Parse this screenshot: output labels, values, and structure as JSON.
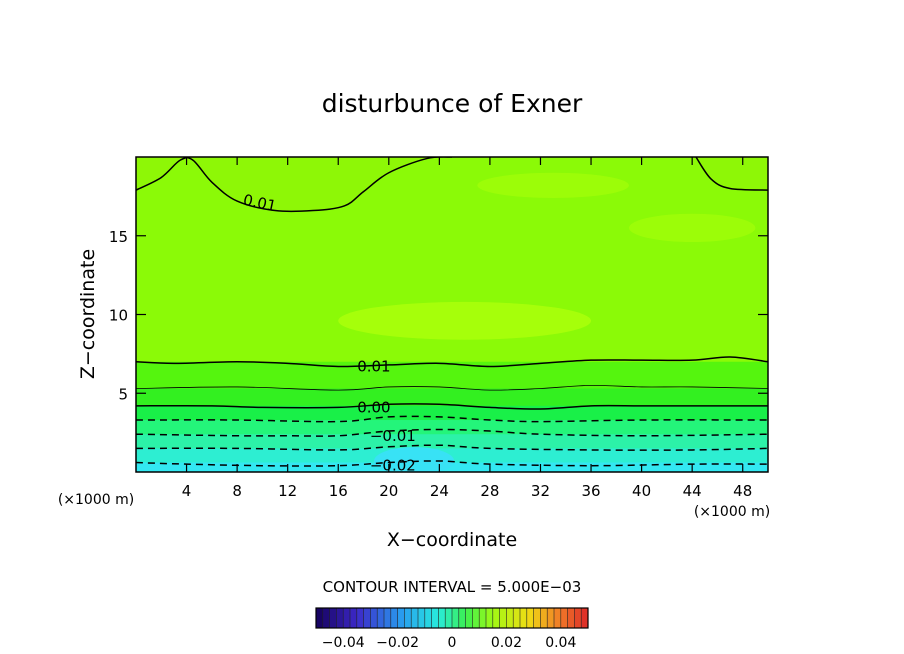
{
  "chart_data": {
    "type": "contour",
    "title": "disturbunce of Exner",
    "xlabel": "X−coordinate",
    "ylabel": "Z−coordinate",
    "x_unit_left": "(×1000 m)",
    "x_unit_right": "(×1000 m)",
    "xlim": [
      0,
      50
    ],
    "ylim": [
      0,
      20
    ],
    "x_ticks": [
      4,
      8,
      12,
      16,
      20,
      24,
      28,
      32,
      36,
      40,
      44,
      48
    ],
    "y_ticks": [
      5,
      10,
      15
    ],
    "contour_interval_text": "CONTOUR INTERVAL = 5.000E−03",
    "contour_labels": [
      {
        "text": "0.01",
        "x": 8.5,
        "z": 17.3
      },
      {
        "text": "0.01",
        "x": 17.5,
        "z": 6.7
      },
      {
        "text": "0.00",
        "x": 17.5,
        "z": 4.1
      },
      {
        "text": "−0.01",
        "x": 18.5,
        "z": 2.3
      },
      {
        "text": "−0.02",
        "x": 18.5,
        "z": 0.4
      }
    ],
    "contour_lines": [
      {
        "level": 0.01,
        "dashed": false,
        "points": [
          [
            0,
            17.9
          ],
          [
            2,
            18.7
          ],
          [
            3.5,
            19.8
          ],
          [
            4.5,
            19.8
          ],
          [
            6,
            18.4
          ],
          [
            8,
            17.2
          ],
          [
            11,
            16.6
          ],
          [
            14,
            16.6
          ],
          [
            16.5,
            16.9
          ],
          [
            18,
            17.8
          ],
          [
            20,
            19.0
          ],
          [
            23,
            19.9
          ],
          [
            25,
            20.0
          ]
        ]
      },
      {
        "level": 0.01,
        "dashed": false,
        "points": [
          [
            44.3,
            20.0
          ],
          [
            45.5,
            18.6
          ],
          [
            47,
            18.0
          ],
          [
            50,
            17.9
          ]
        ]
      },
      {
        "level": 0.01,
        "dashed": false,
        "points": [
          [
            0,
            7.0
          ],
          [
            3,
            6.9
          ],
          [
            8,
            7.0
          ],
          [
            12,
            6.9
          ],
          [
            16,
            6.7
          ],
          [
            20,
            6.8
          ],
          [
            24,
            6.9
          ],
          [
            28,
            6.7
          ],
          [
            32,
            6.9
          ],
          [
            36,
            7.1
          ],
          [
            40,
            7.1
          ],
          [
            44,
            7.1
          ],
          [
            47,
            7.3
          ],
          [
            50,
            7.0
          ]
        ]
      },
      {
        "level": 0.005,
        "dashed": false,
        "points": [
          [
            0,
            5.3
          ],
          [
            8,
            5.4
          ],
          [
            16,
            5.2
          ],
          [
            20,
            5.4
          ],
          [
            24,
            5.4
          ],
          [
            28,
            5.2
          ],
          [
            32,
            5.3
          ],
          [
            36,
            5.5
          ],
          [
            40,
            5.4
          ],
          [
            44,
            5.4
          ],
          [
            50,
            5.3
          ]
        ]
      },
      {
        "level": 0.0,
        "dashed": false,
        "points": [
          [
            0,
            4.2
          ],
          [
            6,
            4.2
          ],
          [
            10,
            4.1
          ],
          [
            16,
            4.1
          ],
          [
            20,
            4.3
          ],
          [
            24,
            4.3
          ],
          [
            28,
            4.1
          ],
          [
            32,
            4.0
          ],
          [
            36,
            4.2
          ],
          [
            40,
            4.2
          ],
          [
            44,
            4.2
          ],
          [
            50,
            4.2
          ]
        ]
      },
      {
        "level": -0.005,
        "dashed": true,
        "points": [
          [
            0,
            3.3
          ],
          [
            8,
            3.3
          ],
          [
            16,
            3.2
          ],
          [
            20,
            3.5
          ],
          [
            24,
            3.5
          ],
          [
            28,
            3.3
          ],
          [
            32,
            3.2
          ],
          [
            40,
            3.3
          ],
          [
            50,
            3.3
          ]
        ]
      },
      {
        "level": -0.01,
        "dashed": true,
        "points": [
          [
            0,
            2.4
          ],
          [
            8,
            2.3
          ],
          [
            12,
            2.3
          ],
          [
            16,
            2.3
          ],
          [
            20,
            2.6
          ],
          [
            24,
            2.7
          ],
          [
            28,
            2.6
          ],
          [
            32,
            2.4
          ],
          [
            40,
            2.3
          ],
          [
            50,
            2.4
          ]
        ]
      },
      {
        "level": -0.015,
        "dashed": true,
        "points": [
          [
            0,
            1.5
          ],
          [
            8,
            1.5
          ],
          [
            16,
            1.4
          ],
          [
            20,
            1.6
          ],
          [
            24,
            1.7
          ],
          [
            28,
            1.5
          ],
          [
            36,
            1.4
          ],
          [
            44,
            1.4
          ],
          [
            50,
            1.5
          ]
        ]
      },
      {
        "level": -0.02,
        "dashed": true,
        "points": [
          [
            0,
            0.6
          ],
          [
            4,
            0.5
          ],
          [
            10,
            0.4
          ],
          [
            16,
            0.4
          ],
          [
            20,
            0.6
          ],
          [
            24,
            0.7
          ],
          [
            28,
            0.5
          ],
          [
            36,
            0.4
          ],
          [
            44,
            0.5
          ],
          [
            50,
            0.5
          ]
        ]
      }
    ],
    "fill_bands": [
      {
        "z_bottom": 0,
        "color": "#33e8f2"
      },
      {
        "z_bottom": 0.6,
        "color": "#2deed2"
      },
      {
        "z_bottom": 1.5,
        "color": "#2cf2a8"
      },
      {
        "z_bottom": 2.4,
        "color": "#24f57a"
      },
      {
        "z_bottom": 3.3,
        "color": "#19f048"
      },
      {
        "z_bottom": 4.2,
        "color": "#33f020"
      },
      {
        "z_bottom": 5.3,
        "color": "#55f50e"
      },
      {
        "z_bottom": 7.0,
        "color": "#8bfa07"
      }
    ],
    "highlight_blobs": [
      {
        "cx": 26,
        "cz": 9.6,
        "rx": 10,
        "rz": 1.2,
        "color": "#a6ff0a"
      },
      {
        "cx": 44,
        "cz": 15.5,
        "rx": 5,
        "rz": 0.9,
        "color": "#9cfd08"
      },
      {
        "cx": 33,
        "cz": 18.2,
        "rx": 6,
        "rz": 0.8,
        "color": "#9cfd08"
      }
    ],
    "colorbar": {
      "range": [
        -0.05,
        0.05
      ],
      "tick_labels": [
        {
          "text": "−0.04",
          "value": -0.04
        },
        {
          "text": "−0.02",
          "value": -0.02
        },
        {
          "text": "0",
          "value": 0
        },
        {
          "text": "0.02",
          "value": 0.02
        },
        {
          "text": "0.04",
          "value": 0.04
        }
      ]
    }
  }
}
